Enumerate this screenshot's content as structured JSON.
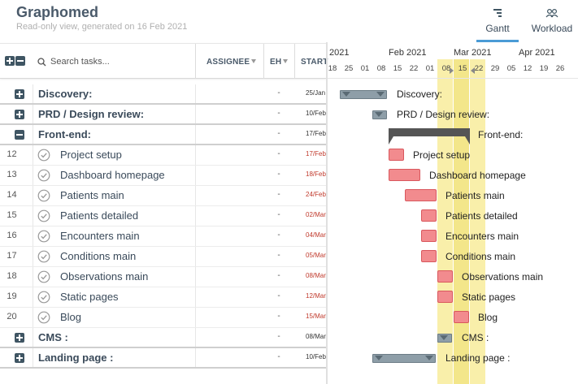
{
  "app": {
    "title": "Graphomed",
    "subtitle": "Read-only view, generated on 16 Feb 2021"
  },
  "view_tabs": [
    {
      "label": "Gantt",
      "icon": "gantt-icon",
      "active": true
    },
    {
      "label": "Workload",
      "icon": "users-icon",
      "active": false
    }
  ],
  "grid": {
    "search_placeholder": "Search tasks...",
    "columns": {
      "assignee": "ASSIGNEE",
      "eh": "EH",
      "start": "START"
    }
  },
  "rows": [
    {
      "type": "group",
      "expand": "plus",
      "num": "",
      "name": "Discovery:",
      "eh": "-",
      "start": "25/Jan",
      "late": false
    },
    {
      "type": "group",
      "expand": "plus",
      "num": "",
      "name": "PRD / Design review:",
      "eh": "-",
      "start": "10/Feb",
      "late": false
    },
    {
      "type": "group",
      "expand": "minus",
      "num": "",
      "name": "Front-end:",
      "eh": "-",
      "start": "17/Feb",
      "late": false
    },
    {
      "type": "task",
      "num": "12",
      "name": "Project setup",
      "eh": "-",
      "start": "17/Feb",
      "late": true
    },
    {
      "type": "task",
      "num": "13",
      "name": "Dashboard homepage",
      "eh": "-",
      "start": "18/Feb",
      "late": true
    },
    {
      "type": "task",
      "num": "14",
      "name": "Patients main",
      "eh": "-",
      "start": "24/Feb",
      "late": true
    },
    {
      "type": "task",
      "num": "15",
      "name": "Patients detailed",
      "eh": "-",
      "start": "02/Mar",
      "late": true
    },
    {
      "type": "task",
      "num": "16",
      "name": "Encounters main",
      "eh": "-",
      "start": "04/Mar",
      "late": true
    },
    {
      "type": "task",
      "num": "17",
      "name": "Conditions main",
      "eh": "-",
      "start": "05/Mar",
      "late": true
    },
    {
      "type": "task",
      "num": "18",
      "name": "Observations main",
      "eh": "-",
      "start": "08/Mar",
      "late": true
    },
    {
      "type": "task",
      "num": "19",
      "name": "Static pages",
      "eh": "-",
      "start": "12/Mar",
      "late": true
    },
    {
      "type": "task",
      "num": "20",
      "name": "Blog",
      "eh": "-",
      "start": "15/Mar",
      "late": true
    },
    {
      "type": "group",
      "expand": "plus",
      "num": "",
      "name": "CMS :",
      "eh": "-",
      "start": "08/Mar",
      "late": false
    },
    {
      "type": "group",
      "expand": "plus",
      "num": "",
      "name": "Landing page :",
      "eh": "-",
      "start": "10/Feb",
      "late": false
    }
  ],
  "timeline": {
    "months": [
      "2021",
      "Feb 2021",
      "Mar 2021",
      "Apr 2021"
    ],
    "days": [
      "18",
      "25",
      "01",
      "08",
      "15",
      "22",
      "01",
      "08",
      "15",
      "22",
      "29",
      "05",
      "12",
      "19",
      "26"
    ],
    "highlight_color": "#f9efaa",
    "task_color": "#f28b8e",
    "group_color": "#8e9ea8"
  },
  "gantt_bars": [
    {
      "kind": "group",
      "label": "Discovery:"
    },
    {
      "kind": "group",
      "label": "PRD / Design review:"
    },
    {
      "kind": "summary",
      "label": "Front-end:"
    },
    {
      "kind": "task",
      "label": "Project setup"
    },
    {
      "kind": "task",
      "label": "Dashboard homepage"
    },
    {
      "kind": "task",
      "label": "Patients main"
    },
    {
      "kind": "task",
      "label": "Patients detailed"
    },
    {
      "kind": "task",
      "label": "Encounters main"
    },
    {
      "kind": "task",
      "label": "Conditions main"
    },
    {
      "kind": "task",
      "label": "Observations main"
    },
    {
      "kind": "task",
      "label": "Static pages"
    },
    {
      "kind": "task",
      "label": "Blog"
    },
    {
      "kind": "group",
      "label": "CMS :"
    },
    {
      "kind": "group",
      "label": "Landing page :"
    }
  ]
}
